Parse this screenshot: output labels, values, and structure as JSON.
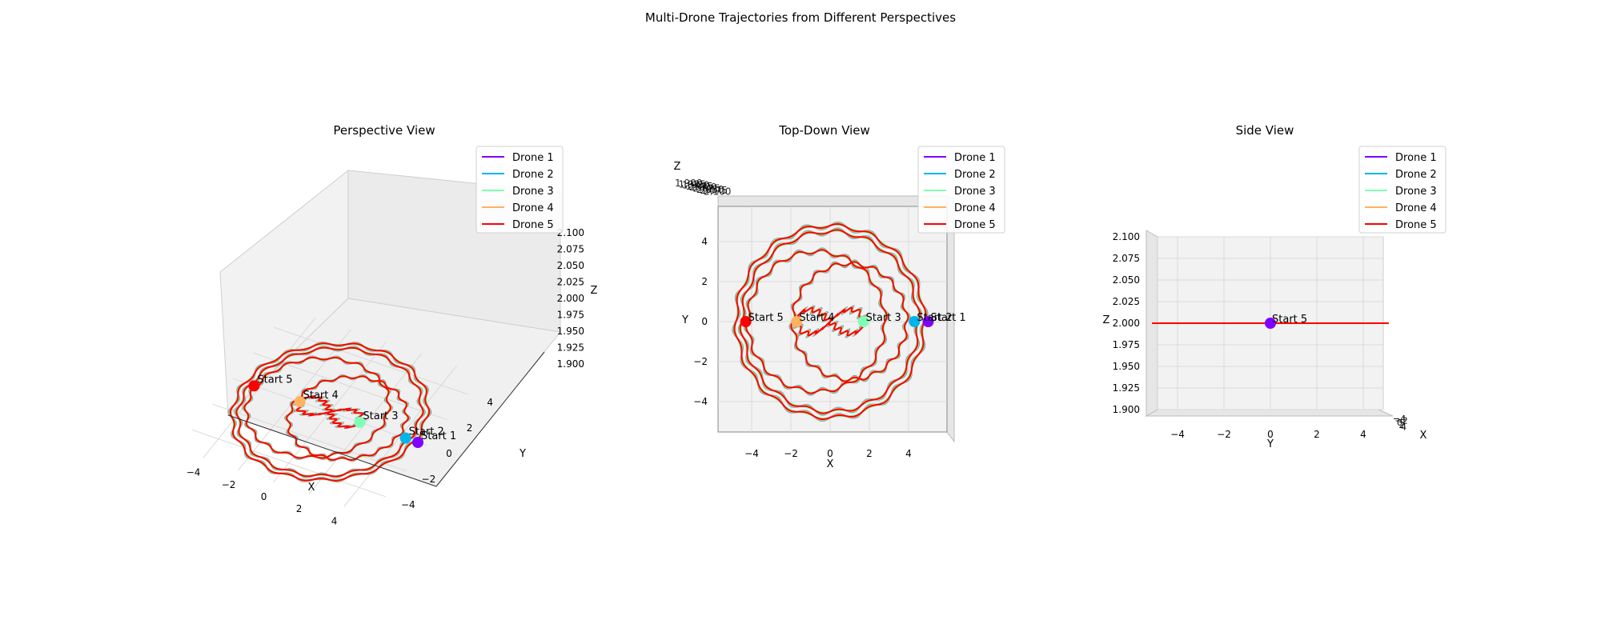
{
  "figure": {
    "title": "Multi-Drone Trajectories from Different Perspectives"
  },
  "chart_data": [
    {
      "type": "line",
      "title": "Perspective View",
      "xlabel": "X",
      "ylabel": "Y",
      "zlabel": "Z",
      "xticks": [
        "−4",
        "−2",
        "0",
        "2",
        "4"
      ],
      "yticks": [
        "−4",
        "−2",
        "0",
        "2",
        "4"
      ],
      "zticks": [
        "1.900",
        "1.925",
        "1.950",
        "1.975",
        "2.000",
        "2.025",
        "2.050",
        "2.075",
        "2.100"
      ],
      "xlim": [
        -5.5,
        5.5
      ],
      "ylim": [
        -5.5,
        5.5
      ],
      "zlim": [
        1.9,
        2.1
      ],
      "legend": "top-right",
      "series": [
        {
          "name": "Drone 1",
          "color": "#8000ff",
          "radius": 5.0,
          "start": [
            5.0,
            0
          ],
          "start_label": "Start 1"
        },
        {
          "name": "Drone 2",
          "color": "#00b5eb",
          "radius": 4.3,
          "start": [
            4.3,
            0
          ],
          "start_label": "Start 2"
        },
        {
          "name": "Drone 3",
          "color": "#80ffb4",
          "radius": 1.7,
          "start": [
            1.7,
            0
          ],
          "start_label": "Start 3"
        },
        {
          "name": "Drone 4",
          "color": "#ffb360",
          "radius": 1.7,
          "start": [
            -1.7,
            0
          ],
          "start_label": "Start 4"
        },
        {
          "name": "Drone 5",
          "color": "#ff0000",
          "radius": 4.3,
          "start": [
            -4.3,
            0
          ],
          "start_label": "Start 5"
        }
      ]
    },
    {
      "type": "line",
      "title": "Top-Down View",
      "xlabel": "X",
      "ylabel": "Y",
      "zlabel": "Z",
      "xticks": [
        "−4",
        "−2",
        "0",
        "2",
        "4"
      ],
      "yticks": [
        "−4",
        "−2",
        "0",
        "2",
        "4"
      ],
      "xlim": [
        -5.5,
        5.5
      ],
      "ylim": [
        -5.5,
        5.5
      ],
      "legend": "top-right",
      "series": [
        {
          "name": "Drone 1",
          "color": "#8000ff",
          "start_label": "Start 1"
        },
        {
          "name": "Drone 2",
          "color": "#00b5eb",
          "start_label": "Start 2"
        },
        {
          "name": "Drone 3",
          "color": "#80ffb4",
          "start_label": "Start 3"
        },
        {
          "name": "Drone 4",
          "color": "#ffb360",
          "start_label": "Start 4"
        },
        {
          "name": "Drone 5",
          "color": "#ff0000",
          "start_label": "Start 5"
        }
      ]
    },
    {
      "type": "line",
      "title": "Side View",
      "xlabel": "X",
      "ylabel": "Y",
      "zlabel": "Z",
      "yticks": [
        "−4",
        "−2",
        "0",
        "2",
        "4"
      ],
      "zticks": [
        "1.900",
        "1.925",
        "1.950",
        "1.975",
        "2.000",
        "2.025",
        "2.050",
        "2.075",
        "2.100"
      ],
      "zlim": [
        1.9,
        2.1
      ],
      "altitude": 2.0,
      "legend": "top-right",
      "start_label": "Start 5",
      "series": [
        {
          "name": "Drone 1",
          "color": "#8000ff"
        },
        {
          "name": "Drone 2",
          "color": "#00b5eb"
        },
        {
          "name": "Drone 3",
          "color": "#80ffb4"
        },
        {
          "name": "Drone 4",
          "color": "#ffb360"
        },
        {
          "name": "Drone 5",
          "color": "#ff0000"
        }
      ]
    }
  ]
}
